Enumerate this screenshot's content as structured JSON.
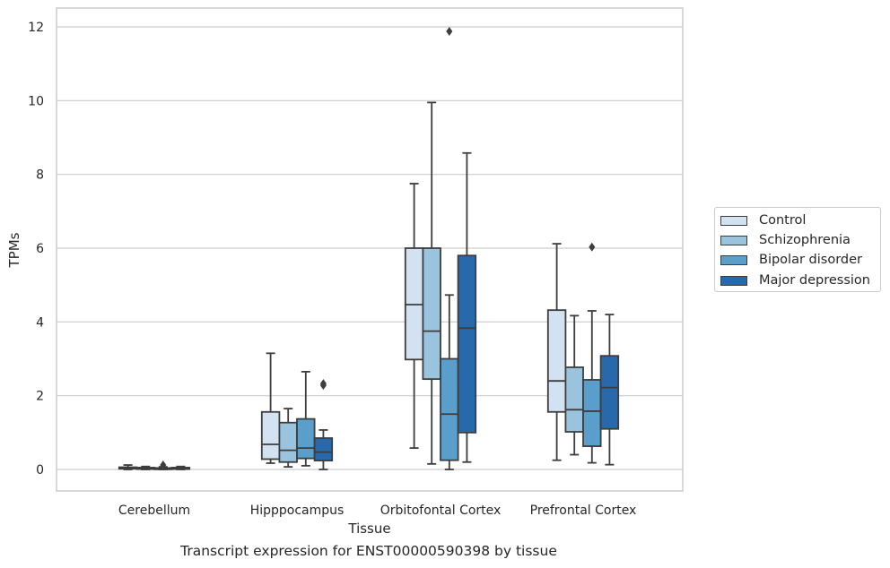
{
  "chart_data": {
    "type": "box",
    "title": "Transcript expression for ENST00000590398 by tissue",
    "xlabel": "Tissue",
    "ylabel": "TPMs",
    "ylim": [
      -0.6,
      12.5
    ],
    "yticks": [
      0,
      2,
      4,
      6,
      8,
      10,
      12
    ],
    "grid": "horizontal",
    "legend_position": "right",
    "categories": [
      "Cerebellum",
      "Hipppocampus",
      "Orbitofontal Cortex",
      "Prefrontal Cortex"
    ],
    "series": [
      {
        "name": "Control",
        "color": "#d2e2f1",
        "boxes": [
          {
            "whislo": 0.0,
            "q1": 0.02,
            "med": 0.04,
            "q3": 0.06,
            "whishi": 0.12,
            "fliers": []
          },
          {
            "whislo": 0.17,
            "q1": 0.28,
            "med": 0.68,
            "q3": 1.56,
            "whishi": 3.15,
            "fliers": []
          },
          {
            "whislo": 0.58,
            "q1": 2.98,
            "med": 4.47,
            "q3": 6.0,
            "whishi": 7.75,
            "fliers": []
          },
          {
            "whislo": 0.25,
            "q1": 1.56,
            "med": 2.4,
            "q3": 4.32,
            "whishi": 6.12,
            "fliers": []
          }
        ]
      },
      {
        "name": "Schizophrenia",
        "color": "#9ac3de",
        "boxes": [
          {
            "whislo": 0.0,
            "q1": 0.01,
            "med": 0.03,
            "q3": 0.05,
            "whishi": 0.08,
            "fliers": []
          },
          {
            "whislo": 0.07,
            "q1": 0.2,
            "med": 0.52,
            "q3": 1.27,
            "whishi": 1.65,
            "fliers": []
          },
          {
            "whislo": 0.15,
            "q1": 2.45,
            "med": 3.75,
            "q3": 6.0,
            "whishi": 9.95,
            "fliers": []
          },
          {
            "whislo": 0.4,
            "q1": 1.02,
            "med": 1.62,
            "q3": 2.77,
            "whishi": 4.17,
            "fliers": []
          }
        ]
      },
      {
        "name": "Bipolar disorder",
        "color": "#5a9ecc",
        "boxes": [
          {
            "whislo": 0.0,
            "q1": 0.01,
            "med": 0.02,
            "q3": 0.04,
            "whishi": 0.07,
            "fliers": [
              0.12
            ]
          },
          {
            "whislo": 0.1,
            "q1": 0.3,
            "med": 0.58,
            "q3": 1.37,
            "whishi": 2.65,
            "fliers": []
          },
          {
            "whislo": 0.0,
            "q1": 0.25,
            "med": 1.5,
            "q3": 3.0,
            "whishi": 4.73,
            "fliers": [
              11.88
            ]
          },
          {
            "whislo": 0.18,
            "q1": 0.63,
            "med": 1.58,
            "q3": 2.43,
            "whishi": 4.3,
            "fliers": [
              6.03
            ]
          }
        ]
      },
      {
        "name": "Major depression",
        "color": "#2869ac",
        "boxes": [
          {
            "whislo": 0.0,
            "q1": 0.01,
            "med": 0.03,
            "q3": 0.05,
            "whishi": 0.08,
            "fliers": []
          },
          {
            "whislo": 0.0,
            "q1": 0.24,
            "med": 0.47,
            "q3": 0.85,
            "whishi": 1.07,
            "fliers": [
              2.28,
              2.33
            ]
          },
          {
            "whislo": 0.2,
            "q1": 1.0,
            "med": 3.83,
            "q3": 5.8,
            "whishi": 8.58,
            "fliers": []
          },
          {
            "whislo": 0.13,
            "q1": 1.1,
            "med": 2.22,
            "q3": 3.08,
            "whishi": 4.2,
            "fliers": []
          }
        ]
      }
    ]
  }
}
